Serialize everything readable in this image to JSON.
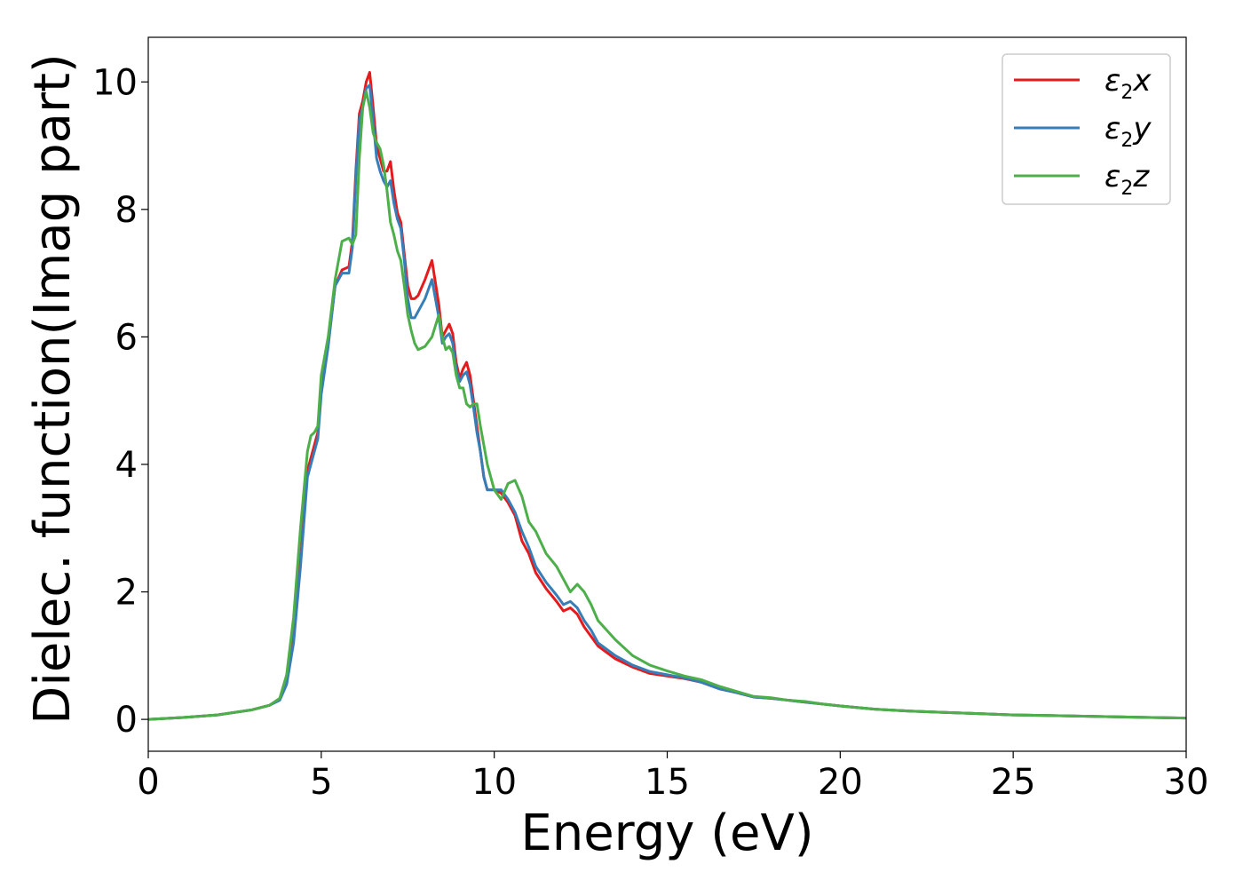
{
  "chart_data": {
    "type": "line",
    "title": "",
    "xlabel": "Energy (eV)",
    "ylabel": "Dielec. function(Imag part)",
    "xlim": [
      0,
      30
    ],
    "ylim": [
      -0.5,
      10.7
    ],
    "xticks": [
      0,
      5,
      10,
      15,
      20,
      25,
      30
    ],
    "yticks": [
      0,
      2,
      4,
      6,
      8,
      10
    ],
    "grid": false,
    "legend": {
      "position": "top-right"
    },
    "series": [
      {
        "name": "ε2x",
        "label_main": "ε",
        "label_sub": "2",
        "label_suffix": "x",
        "color": "#e41a1c",
        "x": [
          0,
          1,
          2,
          3,
          3.5,
          3.8,
          4.0,
          4.2,
          4.4,
          4.6,
          4.8,
          4.9,
          5.0,
          5.2,
          5.4,
          5.6,
          5.8,
          5.9,
          6.0,
          6.1,
          6.2,
          6.3,
          6.4,
          6.5,
          6.6,
          6.7,
          6.8,
          6.9,
          7.0,
          7.1,
          7.2,
          7.3,
          7.4,
          7.5,
          7.6,
          7.7,
          7.8,
          8.0,
          8.2,
          8.4,
          8.5,
          8.6,
          8.7,
          8.8,
          8.9,
          9.0,
          9.1,
          9.2,
          9.3,
          9.4,
          9.5,
          9.6,
          9.7,
          9.8,
          10.0,
          10.2,
          10.4,
          10.6,
          10.8,
          11.0,
          11.2,
          11.5,
          11.8,
          12.0,
          12.2,
          12.4,
          12.6,
          12.8,
          13.0,
          13.5,
          14.0,
          14.5,
          15.0,
          15.5,
          16.0,
          16.5,
          17.0,
          17.5,
          18.0,
          18.5,
          19.0,
          19.5,
          20.0,
          21.0,
          22.0,
          23.0,
          24.0,
          25.0,
          26.0,
          27.0,
          28.0,
          29.0,
          30.0
        ],
        "y": [
          0.0,
          0.03,
          0.07,
          0.15,
          0.22,
          0.32,
          0.6,
          1.3,
          2.5,
          3.9,
          4.3,
          4.5,
          5.2,
          5.9,
          6.8,
          7.05,
          7.1,
          7.5,
          8.6,
          9.5,
          9.7,
          10.0,
          10.15,
          9.6,
          9.0,
          8.8,
          8.6,
          8.6,
          8.75,
          8.3,
          7.95,
          7.8,
          7.3,
          6.8,
          6.6,
          6.6,
          6.65,
          6.9,
          7.2,
          6.5,
          6.0,
          6.1,
          6.2,
          6.05,
          5.6,
          5.35,
          5.5,
          5.6,
          5.4,
          5.0,
          4.6,
          4.2,
          3.8,
          3.6,
          3.6,
          3.55,
          3.4,
          3.2,
          2.8,
          2.6,
          2.3,
          2.05,
          1.85,
          1.7,
          1.75,
          1.65,
          1.45,
          1.3,
          1.15,
          0.95,
          0.82,
          0.72,
          0.68,
          0.64,
          0.58,
          0.48,
          0.42,
          0.35,
          0.33,
          0.3,
          0.27,
          0.24,
          0.21,
          0.16,
          0.13,
          0.11,
          0.09,
          0.07,
          0.06,
          0.05,
          0.04,
          0.03,
          0.02
        ]
      },
      {
        "name": "ε2y",
        "label_main": "ε",
        "label_sub": "2",
        "label_suffix": "y",
        "color": "#377eb8",
        "x": [
          0,
          1,
          2,
          3,
          3.5,
          3.8,
          4.0,
          4.2,
          4.4,
          4.6,
          4.8,
          4.9,
          5.0,
          5.2,
          5.4,
          5.6,
          5.8,
          5.9,
          6.0,
          6.1,
          6.2,
          6.3,
          6.4,
          6.5,
          6.6,
          6.7,
          6.8,
          6.9,
          7.0,
          7.1,
          7.2,
          7.3,
          7.4,
          7.5,
          7.6,
          7.7,
          7.8,
          8.0,
          8.2,
          8.4,
          8.5,
          8.6,
          8.7,
          8.8,
          8.9,
          9.0,
          9.1,
          9.2,
          9.3,
          9.4,
          9.5,
          9.6,
          9.7,
          9.8,
          10.0,
          10.2,
          10.4,
          10.6,
          10.8,
          11.0,
          11.2,
          11.5,
          11.8,
          12.0,
          12.2,
          12.4,
          12.6,
          12.8,
          13.0,
          13.5,
          14.0,
          14.5,
          15.0,
          15.5,
          16.0,
          16.5,
          17.0,
          17.5,
          18.0,
          18.5,
          19.0,
          19.5,
          20.0,
          21.0,
          22.0,
          23.0,
          24.0,
          25.0,
          26.0,
          27.0,
          28.0,
          29.0,
          30.0
        ],
        "y": [
          0.0,
          0.03,
          0.07,
          0.15,
          0.22,
          0.3,
          0.55,
          1.2,
          2.4,
          3.8,
          4.2,
          4.4,
          5.1,
          5.85,
          6.8,
          7.0,
          7.0,
          7.4,
          8.5,
          9.4,
          9.6,
          9.9,
          9.95,
          9.4,
          8.8,
          8.6,
          8.45,
          8.35,
          8.45,
          8.1,
          7.85,
          7.7,
          7.2,
          6.6,
          6.3,
          6.3,
          6.4,
          6.6,
          6.9,
          6.3,
          5.9,
          6.0,
          6.05,
          5.9,
          5.5,
          5.3,
          5.4,
          5.45,
          5.25,
          4.9,
          4.5,
          4.2,
          3.8,
          3.6,
          3.6,
          3.6,
          3.45,
          3.25,
          2.95,
          2.7,
          2.4,
          2.15,
          1.95,
          1.8,
          1.85,
          1.75,
          1.55,
          1.4,
          1.2,
          1.0,
          0.85,
          0.75,
          0.7,
          0.65,
          0.58,
          0.48,
          0.42,
          0.35,
          0.33,
          0.3,
          0.27,
          0.24,
          0.21,
          0.16,
          0.13,
          0.11,
          0.09,
          0.07,
          0.06,
          0.05,
          0.04,
          0.03,
          0.02
        ]
      },
      {
        "name": "ε2z",
        "label_main": "ε",
        "label_sub": "2",
        "label_suffix": "z",
        "color": "#4daf4a",
        "x": [
          0,
          1,
          2,
          3,
          3.5,
          3.8,
          4.0,
          4.2,
          4.4,
          4.6,
          4.7,
          4.8,
          4.9,
          5.0,
          5.2,
          5.4,
          5.6,
          5.8,
          5.9,
          6.0,
          6.1,
          6.2,
          6.3,
          6.4,
          6.5,
          6.6,
          6.7,
          6.8,
          6.9,
          7.0,
          7.1,
          7.2,
          7.3,
          7.4,
          7.5,
          7.6,
          7.7,
          7.8,
          8.0,
          8.2,
          8.4,
          8.5,
          8.6,
          8.7,
          8.8,
          8.9,
          9.0,
          9.1,
          9.2,
          9.3,
          9.4,
          9.5,
          9.6,
          9.7,
          9.8,
          10.0,
          10.2,
          10.4,
          10.6,
          10.8,
          11.0,
          11.2,
          11.5,
          11.8,
          12.0,
          12.2,
          12.4,
          12.6,
          12.8,
          13.0,
          13.5,
          14.0,
          14.5,
          15.0,
          15.5,
          16.0,
          16.5,
          17.0,
          17.5,
          18.0,
          18.5,
          19.0,
          19.5,
          20.0,
          21.0,
          22.0,
          23.0,
          24.0,
          25.0,
          26.0,
          27.0,
          28.0,
          29.0,
          30.0
        ],
        "y": [
          0.0,
          0.03,
          0.07,
          0.15,
          0.22,
          0.33,
          0.7,
          1.6,
          3.0,
          4.2,
          4.45,
          4.5,
          4.6,
          5.4,
          6.0,
          6.9,
          7.5,
          7.55,
          7.45,
          7.6,
          8.8,
          9.6,
          9.85,
          9.6,
          9.2,
          9.05,
          8.95,
          8.7,
          8.3,
          7.8,
          7.6,
          7.35,
          7.2,
          6.8,
          6.35,
          6.1,
          5.9,
          5.8,
          5.85,
          6.0,
          6.35,
          6.0,
          5.8,
          5.85,
          5.75,
          5.4,
          5.2,
          5.2,
          4.95,
          4.9,
          4.95,
          4.95,
          4.6,
          4.3,
          4.0,
          3.6,
          3.45,
          3.7,
          3.75,
          3.5,
          3.1,
          2.95,
          2.6,
          2.4,
          2.2,
          2.0,
          2.12,
          2.0,
          1.8,
          1.55,
          1.25,
          1.0,
          0.85,
          0.76,
          0.68,
          0.62,
          0.52,
          0.44,
          0.36,
          0.34,
          0.3,
          0.28,
          0.24,
          0.21,
          0.16,
          0.13,
          0.11,
          0.09,
          0.07,
          0.06,
          0.05,
          0.04,
          0.03,
          0.02
        ]
      }
    ]
  }
}
